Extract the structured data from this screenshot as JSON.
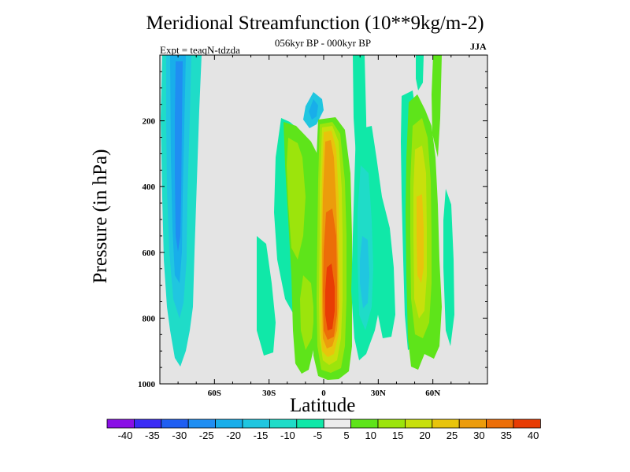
{
  "chart_data": {
    "type": "heatmap",
    "title": "Meridional Streamfunction (10**9kg/m-2)",
    "subtitle": "056kyr BP - 000kyr BP",
    "expt_label": "Expt = teaqN-tdzda",
    "season": "JJA",
    "xlabel": "Latitude",
    "ylabel": "Pressure (in hPa)",
    "xlim": [
      -90,
      90
    ],
    "ylim": [
      1000,
      0
    ],
    "x_ticks": [
      {
        "value": -60,
        "label": "60S"
      },
      {
        "value": -30,
        "label": "30S"
      },
      {
        "value": 0,
        "label": "0"
      },
      {
        "value": 30,
        "label": "30N"
      },
      {
        "value": 60,
        "label": "60N"
      }
    ],
    "y_ticks": [
      {
        "value": 200,
        "label": "200"
      },
      {
        "value": 400,
        "label": "400"
      },
      {
        "value": 600,
        "label": "600"
      },
      {
        "value": 800,
        "label": "800"
      },
      {
        "value": 1000,
        "label": "1000"
      }
    ],
    "levels": [
      "-40",
      "-35",
      "-30",
      "-25",
      "-20",
      "-15",
      "-10",
      "-5",
      "5",
      "10",
      "15",
      "20",
      "25",
      "30",
      "35",
      "40"
    ],
    "colors": [
      "#8a10e6",
      "#3a2cf5",
      "#1f5ef2",
      "#1f8ef2",
      "#18aeea",
      "#20c6e0",
      "#1fdcc8",
      "#10e8a8",
      "#ececec",
      "#5ee41a",
      "#9ce40c",
      "#c8e00c",
      "#e8c40c",
      "#ec9c0c",
      "#ec6e08",
      "#e83c04"
    ],
    "features": [
      {
        "name": "southern-negative-cell",
        "lat_range": [
          -90,
          -72
        ],
        "p_range": [
          0,
          960
        ],
        "min_value": -25
      },
      {
        "name": "tropical-positive-cell",
        "lat_range": [
          -20,
          10
        ],
        "p_range": [
          190,
          980
        ],
        "max_value": 35
      },
      {
        "name": "northern-positive-cell",
        "lat_range": [
          45,
          66
        ],
        "p_range": [
          0,
          960
        ],
        "max_value": 20
      },
      {
        "name": "subtropical-negative-band",
        "lat_range": [
          15,
          35
        ],
        "p_range": [
          0,
          960
        ],
        "min_value": -15
      }
    ]
  }
}
